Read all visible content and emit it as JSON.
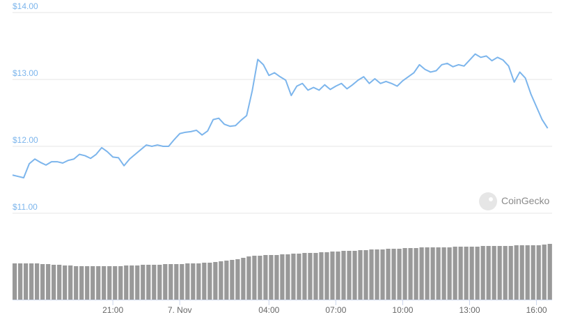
{
  "chart_data": {
    "type": "line",
    "watermark": "CoinGecko",
    "x": [
      -7.5,
      -7.25,
      -7,
      -6.75,
      -6.5,
      -6.25,
      -6,
      -5.75,
      -5.5,
      -5.25,
      -5,
      -4.75,
      -4.5,
      -4.25,
      -4,
      -3.75,
      -3.5,
      -3.25,
      -3,
      -2.75,
      -2.5,
      -2.25,
      -2,
      -1.75,
      -1.5,
      -1.25,
      -1,
      -0.75,
      -0.5,
      -0.25,
      0,
      0.25,
      0.5,
      0.75,
      1,
      1.25,
      1.5,
      1.75,
      2,
      2.25,
      2.5,
      2.75,
      3,
      3.25,
      3.5,
      3.75,
      4,
      4.25,
      4.5,
      4.75,
      5,
      5.25,
      5.5,
      5.75,
      6,
      6.25,
      6.5,
      6.75,
      7,
      7.25,
      7.5,
      7.75,
      8,
      8.25,
      8.5,
      8.75,
      9,
      9.25,
      9.5,
      9.75,
      10,
      10.25,
      10.5,
      10.75,
      11,
      11.25,
      11.5,
      11.75,
      12,
      12.25,
      12.5,
      12.75,
      13,
      13.25,
      13.5,
      13.75,
      14,
      14.25,
      14.5,
      14.75,
      15,
      15.25,
      15.5,
      15.75,
      16,
      16.25,
      16.5
    ],
    "series": [
      {
        "color": "#7cb5ec",
        "values": [
          11.57,
          11.55,
          11.53,
          11.74,
          11.81,
          11.76,
          11.72,
          11.77,
          11.77,
          11.75,
          11.79,
          11.81,
          11.88,
          11.86,
          11.82,
          11.88,
          11.98,
          11.92,
          11.84,
          11.83,
          11.71,
          11.81,
          11.88,
          11.95,
          12.02,
          12.0,
          12.02,
          12.0,
          12.0,
          12.1,
          12.19,
          12.21,
          12.22,
          12.24,
          12.17,
          12.23,
          12.4,
          12.42,
          12.33,
          12.3,
          12.31,
          12.39,
          12.46,
          12.83,
          13.3,
          13.22,
          13.06,
          13.1,
          13.04,
          12.99,
          12.76,
          12.9,
          12.94,
          12.84,
          12.88,
          12.84,
          12.92,
          12.85,
          12.9,
          12.94,
          12.86,
          12.92,
          12.99,
          13.04,
          12.94,
          13.01,
          12.94,
          12.97,
          12.94,
          12.9,
          12.98,
          13.04,
          13.1,
          13.22,
          13.15,
          13.11,
          13.13,
          13.22,
          13.24,
          13.19,
          13.22,
          13.2,
          13.29,
          13.38,
          13.33,
          13.35,
          13.28,
          13.33,
          13.29,
          13.2,
          12.96,
          13.11,
          13.02,
          12.78,
          12.59,
          12.4,
          12.27
        ]
      },
      {
        "color": "#999999",
        "axis": "y2",
        "values": [
          52,
          52,
          52,
          52,
          52,
          51,
          51,
          50,
          50,
          49,
          49,
          48,
          48,
          48,
          48,
          48,
          48,
          48,
          48,
          48,
          49,
          49,
          49,
          50,
          50,
          50,
          50,
          51,
          51,
          51,
          51,
          52,
          52,
          52,
          53,
          53,
          54,
          55,
          56,
          57,
          58,
          60,
          62,
          63,
          63,
          64,
          64,
          64,
          65,
          65,
          66,
          66,
          67,
          67,
          67,
          68,
          68,
          69,
          69,
          70,
          70,
          70,
          71,
          71,
          72,
          72,
          72,
          73,
          73,
          73,
          74,
          74,
          74,
          75,
          75,
          75,
          75,
          75,
          75,
          76,
          76,
          76,
          76,
          76,
          77,
          77,
          77,
          77,
          77,
          77,
          78,
          78,
          78,
          78,
          78,
          79,
          80
        ]
      }
    ],
    "xlim": [
      -7.5,
      16.7
    ],
    "xticks": [
      {
        "value": -3,
        "label": "21:00"
      },
      {
        "value": 0,
        "label": "7. Nov"
      },
      {
        "value": 4,
        "label": "04:00"
      },
      {
        "value": 7,
        "label": "07:00"
      },
      {
        "value": 10,
        "label": "10:00"
      },
      {
        "value": 13,
        "label": "13:00"
      },
      {
        "value": 16,
        "label": "16:00"
      }
    ],
    "ylim": [
      11,
      14
    ],
    "yticks": [
      {
        "value": 11,
        "label": "$11.00"
      },
      {
        "value": 12,
        "label": "$12.00"
      },
      {
        "value": 13,
        "label": "$13.00"
      },
      {
        "value": 14,
        "label": "$14.00"
      }
    ],
    "y2lim": [
      0,
      80
    ],
    "grid": true
  }
}
